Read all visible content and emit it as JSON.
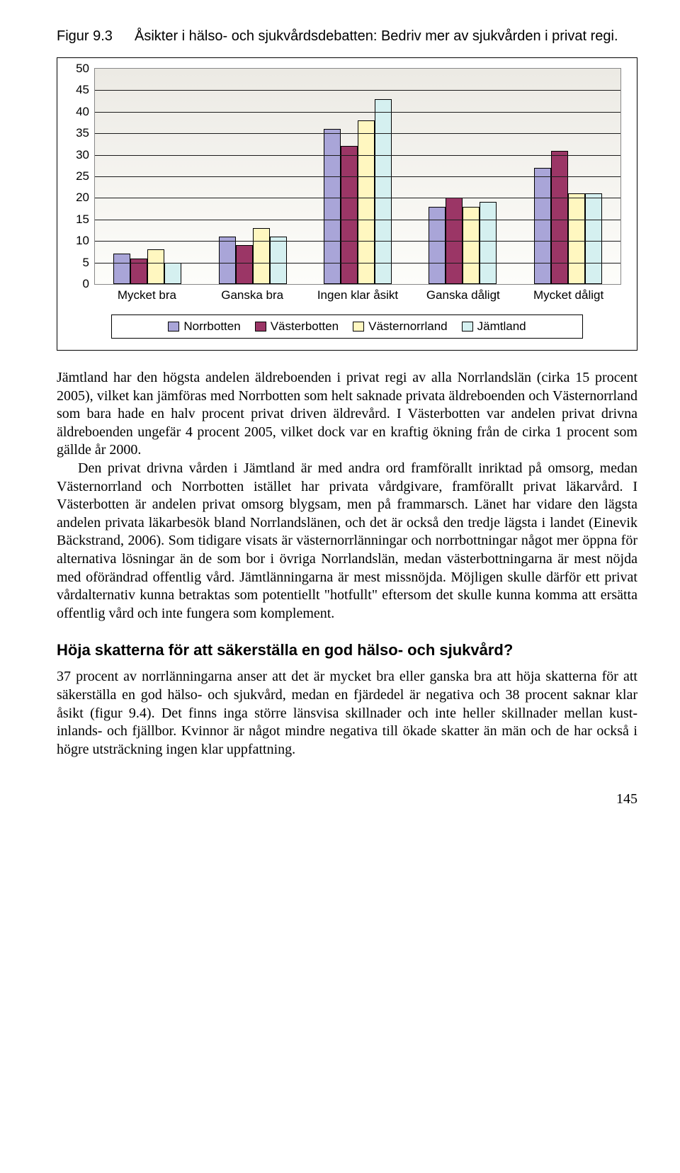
{
  "figure": {
    "label": "Figur 9.3",
    "title": "Åsikter i hälso- och sjukvårdsdebatten: Bedriv mer av sjukvården i privat regi."
  },
  "chart": {
    "type": "bar",
    "ylim": [
      0,
      50
    ],
    "ytick_step": 5,
    "categories": [
      "Mycket bra",
      "Ganska bra",
      "Ingen klar åsikt",
      "Ganska dåligt",
      "Mycket dåligt"
    ],
    "series": [
      {
        "name": "Norrbotten",
        "color": "#a9a5d8",
        "values": [
          7,
          11,
          36,
          18,
          27
        ]
      },
      {
        "name": "Västerbotten",
        "color": "#9b3666",
        "values": [
          6,
          9,
          32,
          20,
          31
        ]
      },
      {
        "name": "Västernorrland",
        "color": "#fff7c0",
        "values": [
          8,
          13,
          38,
          18,
          21
        ]
      },
      {
        "name": "Jämtland",
        "color": "#d5f0f0",
        "values": [
          5,
          11,
          43,
          19,
          21
        ]
      }
    ],
    "background_top": "#eceae4",
    "background_bottom": "#fdfdfa",
    "grid_color": "#1b1b1b"
  },
  "paragraphs": {
    "p1": "Jämtland har den högsta andelen äldreboenden i privat regi av alla Norrlandslän (cirka 15 procent 2005), vilket kan jämföras med Norrbotten som helt saknade privata äldreboenden och Västernorrland som bara hade en halv procent privat driven äldrevård. I Västerbotten var andelen privat drivna äldreboenden ungefär 4 procent 2005, vilket dock var en kraftig ökning från de cirka 1 procent som gällde år 2000.",
    "p2": "Den privat drivna vården i Jämtland är med andra ord framförallt inriktad på omsorg, medan Västernorrland och Norrbotten istället har privata vårdgivare, framförallt privat läkarvård. I Västerbotten är andelen privat omsorg blygsam, men på frammarsch. Länet har vidare den lägsta andelen privata läkarbesök bland Norrlandslänen, och det är också den tredje lägsta i landet (Einevik Bäckstrand, 2006). Som tidigare visats är västernorrlänningar och norrbottningar något mer öppna för alternativa lösningar än de som bor i övriga Norrlandslän, medan västerbottningarna är mest nöjda med oförändrad offentlig vård. Jämtlänningarna är mest missnöjda. Möjligen skulle därför ett privat vårdalternativ kunna betraktas som potentiellt \"hotfullt\" eftersom det skulle kunna komma att ersätta offentlig vård och inte fungera som komplement."
  },
  "subheading": "Höja skatterna för att säkerställa en god hälso- och sjukvård?",
  "p3": "37 procent av norrlänningarna anser att det är mycket bra eller ganska bra att höja skatterna för att säkerställa en god hälso- och sjukvård, medan en fjärdedel är negativa och 38 procent saknar klar åsikt (figur 9.4). Det finns inga större länsvisa skillnader och inte heller skillnader mellan kust- inlands- och fjällbor. Kvinnor är något mindre negativa till ökade skatter än män och de har också i högre utsträckning ingen klar uppfattning.",
  "page_number": "145"
}
